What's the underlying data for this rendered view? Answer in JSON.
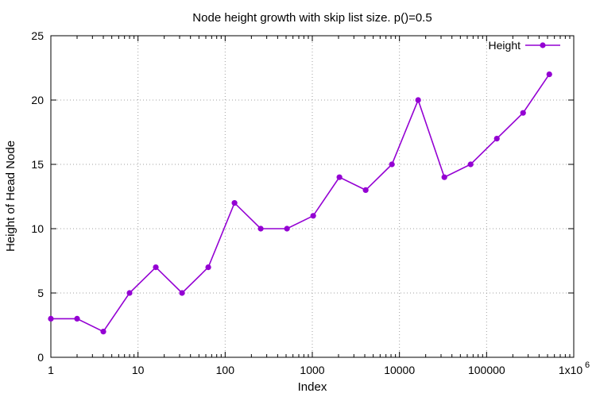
{
  "chart_data": {
    "type": "line",
    "title": "Node height growth with skip list size. p()=0.5",
    "xlabel": "Index",
    "ylabel": "Height of Head Node",
    "x_scale": "log10",
    "xlim": [
      1,
      1000000
    ],
    "ylim": [
      0,
      25
    ],
    "grid": true,
    "legend_position": "top-right",
    "x_ticks": [
      {
        "value": 1,
        "label": "1"
      },
      {
        "value": 10,
        "label": "10"
      },
      {
        "value": 100,
        "label": "100"
      },
      {
        "value": 1000,
        "label": "1000"
      },
      {
        "value": 10000,
        "label": "10000"
      },
      {
        "value": 100000,
        "label": "100000"
      },
      {
        "value": 1000000,
        "label": "1x10",
        "superscript": "6"
      }
    ],
    "y_ticks": [
      {
        "value": 0,
        "label": "0"
      },
      {
        "value": 5,
        "label": "5"
      },
      {
        "value": 10,
        "label": "10"
      },
      {
        "value": 15,
        "label": "15"
      },
      {
        "value": 20,
        "label": "20"
      },
      {
        "value": 25,
        "label": "25"
      }
    ],
    "series": [
      {
        "name": "Height",
        "color": "#9400d3",
        "marker": "filled-circle",
        "x": [
          1,
          2,
          4,
          8,
          16,
          32,
          64,
          128,
          256,
          512,
          1024,
          2048,
          4096,
          8192,
          16384,
          32768,
          65536,
          131072,
          262144,
          524288
        ],
        "y": [
          3,
          3,
          2,
          5,
          7,
          5,
          7,
          12,
          10,
          10,
          11,
          14,
          13,
          15,
          20,
          14,
          15,
          17,
          19,
          22
        ]
      }
    ]
  }
}
